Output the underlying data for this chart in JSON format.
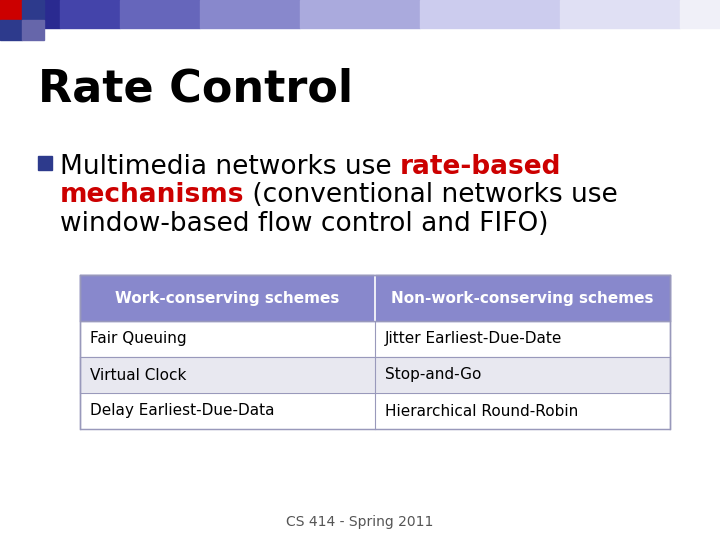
{
  "title": "Rate Control",
  "title_fontsize": 32,
  "title_color": "#000000",
  "bullet_fontsize": 19,
  "bullet_square_color": "#2d3a8c",
  "table_header_bg": "#8888cc",
  "table_header_text_color": "#ffffff",
  "table_border_color": "#9999bb",
  "table_text_color": "#000000",
  "table_header_fontsize": 11,
  "table_cell_fontsize": 11,
  "table_left_col": "Work-conserving schemes",
  "table_right_col": "Non-work-conserving schemes",
  "table_data": [
    [
      "Fair Queuing",
      "Jitter Earliest-Due-Date"
    ],
    [
      "Virtual Clock",
      "Stop-and-Go"
    ],
    [
      "Delay Earliest-Due-Data",
      "Hierarchical Round-Robin"
    ]
  ],
  "footer": "CS 414 - Spring 2011",
  "footer_fontsize": 10,
  "footer_color": "#555555",
  "bg_color": "#ffffff",
  "red_color": "#cc0000",
  "line1_black": "Multimedia networks use ",
  "line1_red": "rate-based",
  "line2_red": "mechanisms",
  "line2_black": " (conventional networks use",
  "line3_black": "window-based flow control and FIFO)"
}
